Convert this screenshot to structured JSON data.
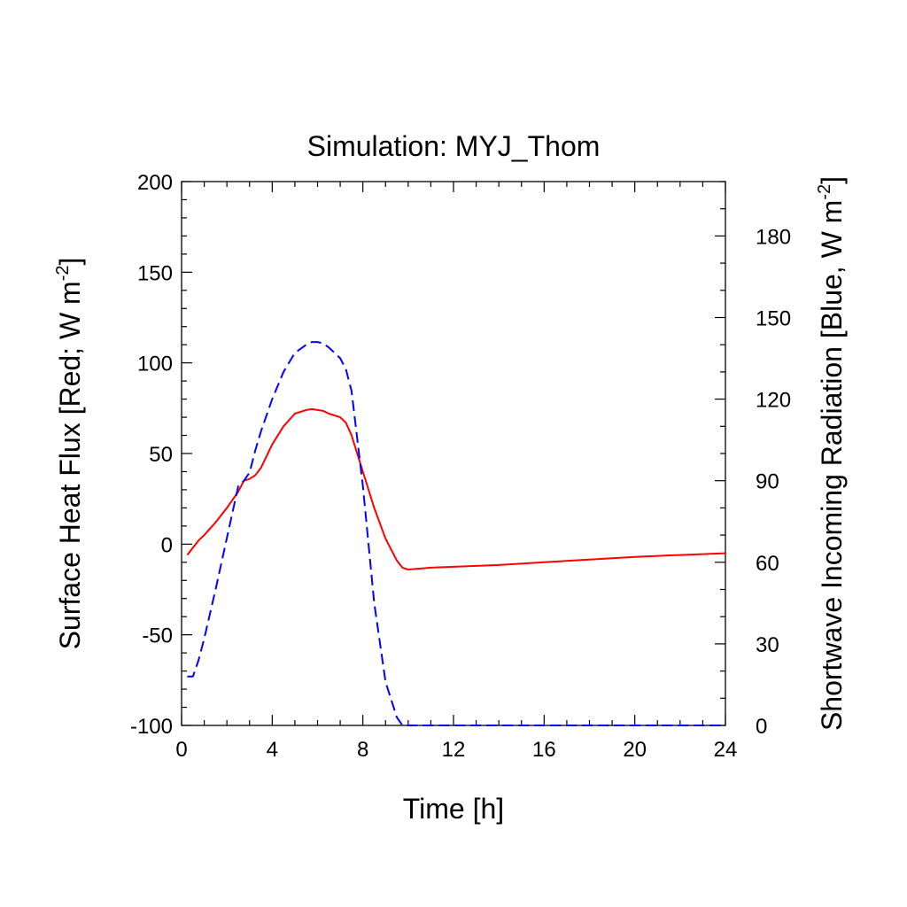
{
  "chart_data": {
    "type": "line",
    "title": "Simulation: MYJ_Thom",
    "xlabel": "Time [h]",
    "ylabel_left": {
      "main": "Surface Heat Flux [Red; W m",
      "sup": "-2",
      "end": "]"
    },
    "ylabel_right": {
      "main": "Shortwave Incoming Radiation [Blue, W m",
      "sup": "-2",
      "end": "]"
    },
    "xlim": [
      0,
      24
    ],
    "ylim_left": [
      -100,
      200
    ],
    "ylim_right": [
      0,
      200
    ],
    "x_ticks": [
      "0",
      "4",
      "8",
      "12",
      "16",
      "20",
      "24"
    ],
    "y_left_ticks": [
      "-100",
      "-50",
      "0",
      "50",
      "100",
      "150",
      "200"
    ],
    "y_right_ticks": [
      "0",
      "30",
      "60",
      "90",
      "120",
      "150",
      "180"
    ],
    "grid": false,
    "colors": {
      "heat_flux": "#ff0000",
      "shortwave": "#0000ff"
    },
    "series": [
      {
        "axis": "left",
        "style": "solid",
        "x": [
          0.25,
          0.5,
          0.75,
          1.0,
          1.5,
          2.0,
          2.5,
          2.75,
          3.0,
          3.25,
          3.5,
          4.0,
          4.5,
          5.0,
          5.5,
          5.75,
          6.0,
          6.25,
          6.5,
          6.75,
          7.0,
          7.25,
          7.5,
          8.0,
          8.5,
          9.0,
          9.5,
          9.75,
          10.0,
          10.5,
          11.0,
          12.0,
          13.0,
          14.0,
          16.0,
          18.0,
          20.0,
          22.0,
          24.0
        ],
        "y": [
          -6,
          -2,
          2,
          5,
          12,
          20,
          29,
          35,
          36,
          38,
          42,
          55,
          65,
          72,
          74,
          74.5,
          74,
          73.5,
          72,
          71,
          70,
          67,
          60,
          40,
          20,
          3,
          -9,
          -13,
          -14,
          -13.5,
          -13,
          -12.5,
          -12,
          -11.5,
          -10,
          -8.5,
          -7,
          -6,
          -5
        ]
      },
      {
        "axis": "right",
        "style": "dashed",
        "x": [
          0.25,
          0.5,
          0.75,
          1.0,
          1.5,
          2.0,
          2.5,
          2.75,
          3.0,
          3.25,
          3.5,
          4.0,
          4.5,
          5.0,
          5.5,
          5.75,
          6.0,
          6.25,
          6.5,
          6.75,
          7.0,
          7.25,
          7.5,
          8.0,
          8.5,
          9.0,
          9.5,
          9.75,
          10.0,
          12.0,
          14.0,
          16.0,
          18.0,
          20.0,
          22.0,
          24.0
        ],
        "y": [
          18,
          18,
          24,
          32,
          50,
          69,
          88,
          90,
          93,
          101,
          108,
          120,
          130,
          137,
          140,
          141,
          141,
          140.5,
          139,
          137,
          135,
          131,
          123,
          88,
          45,
          16,
          3,
          0,
          0,
          0,
          0,
          0,
          0,
          0,
          0,
          0
        ]
      }
    ]
  }
}
